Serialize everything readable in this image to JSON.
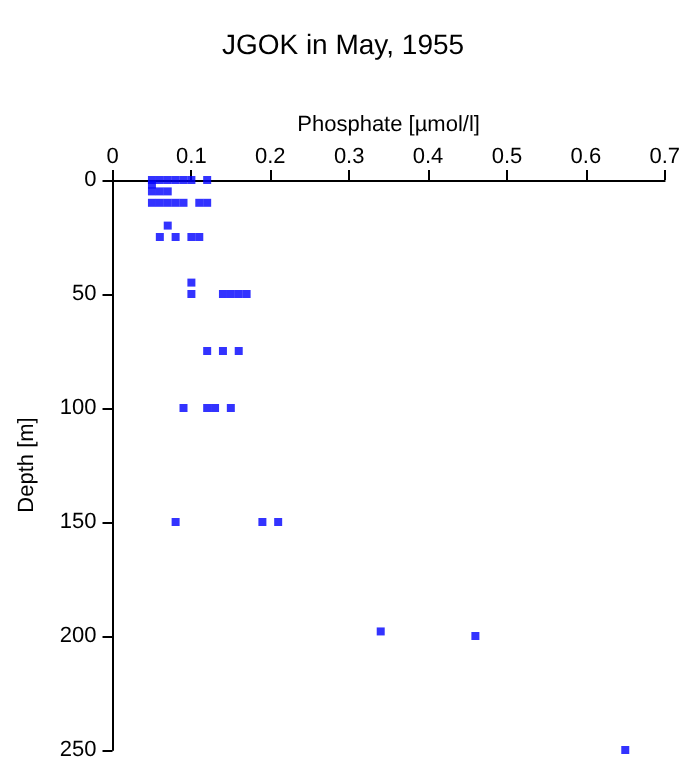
{
  "chart_data": {
    "type": "scatter",
    "title": "JGOK in May, 1955",
    "xlabel": "Phosphate [µmol/l]",
    "ylabel": "Depth [m]",
    "x": [
      0.05,
      0.06,
      0.07,
      0.08,
      0.09,
      0.1,
      0.12,
      0.05,
      0.05,
      0.06,
      0.07,
      0.05,
      0.06,
      0.07,
      0.08,
      0.09,
      0.11,
      0.12,
      0.07,
      0.06,
      0.08,
      0.1,
      0.11,
      0.1,
      0.1,
      0.14,
      0.15,
      0.16,
      0.17,
      0.12,
      0.14,
      0.16,
      0.09,
      0.12,
      0.13,
      0.15,
      0.08,
      0.19,
      0.21,
      0.34,
      0.46,
      0.65
    ],
    "values": [
      0,
      0,
      0,
      0,
      0,
      0,
      0,
      2,
      5,
      5,
      5,
      10,
      10,
      10,
      10,
      10,
      10,
      10,
      20,
      25,
      25,
      25,
      25,
      45,
      50,
      50,
      50,
      50,
      50,
      75,
      75,
      75,
      100,
      100,
      100,
      100,
      150,
      150,
      150,
      198,
      200,
      250
    ],
    "color": "#0000ff",
    "marker": "square",
    "grid": false,
    "xlim": [
      0,
      0.7
    ],
    "xticks": [
      0,
      0.1,
      0.2,
      0.3,
      0.4,
      0.5,
      0.6,
      0.7
    ],
    "ylim": [
      250,
      0
    ],
    "yticks": [
      0,
      50,
      100,
      150,
      200,
      250
    ]
  }
}
